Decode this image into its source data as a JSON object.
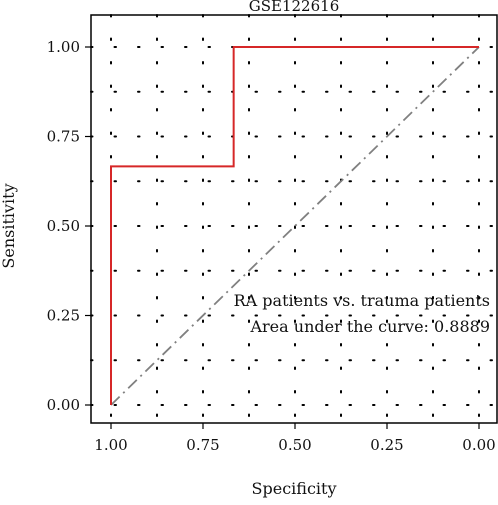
{
  "chart_data": {
    "type": "line",
    "title": "GSE122616",
    "xlabel": "Specificity",
    "ylabel": "Sensitivity",
    "x_axis_reversed": true,
    "xlim": [
      1.0,
      0.0
    ],
    "ylim": [
      0.0,
      1.0
    ],
    "x_ticks": [
      "1.00",
      "0.75",
      "0.50",
      "0.25",
      "0.00"
    ],
    "y_ticks": [
      "0.00",
      "0.25",
      "0.50",
      "0.75",
      "1.00"
    ],
    "grid": "dotted",
    "series": [
      {
        "color": "#d62728",
        "style": "solid",
        "points": [
          {
            "specificity": 1.0,
            "sensitivity": 0.0
          },
          {
            "specificity": 1.0,
            "sensitivity": 0.6667
          },
          {
            "specificity": 0.6667,
            "sensitivity": 0.6667
          },
          {
            "specificity": 0.6667,
            "sensitivity": 1.0
          },
          {
            "specificity": 0.0,
            "sensitivity": 1.0
          }
        ]
      },
      {
        "color": "#808080",
        "style": "dashdot",
        "points": [
          {
            "specificity": 1.0,
            "sensitivity": 0.0
          },
          {
            "specificity": 0.0,
            "sensitivity": 1.0
          }
        ]
      }
    ],
    "annotations": [
      "RA patients vs. trauma patients",
      "Area under the curve: 0.8889"
    ]
  }
}
